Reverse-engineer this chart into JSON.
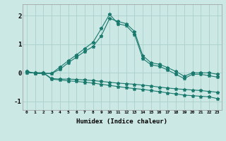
{
  "xlabel": "Humidex (Indice chaleur)",
  "x": [
    0,
    1,
    2,
    3,
    4,
    5,
    6,
    7,
    8,
    9,
    10,
    11,
    12,
    13,
    14,
    15,
    16,
    17,
    18,
    19,
    20,
    21,
    22,
    23
  ],
  "line1": [
    0.05,
    -0.02,
    -0.02,
    -0.02,
    0.12,
    0.35,
    0.55,
    0.75,
    0.92,
    1.3,
    1.9,
    1.8,
    1.72,
    1.45,
    0.6,
    0.35,
    0.3,
    0.18,
    0.05,
    -0.12,
    0.0,
    0.0,
    0.0,
    -0.05
  ],
  "line2": [
    0.05,
    -0.02,
    -0.02,
    -0.02,
    0.2,
    0.42,
    0.63,
    0.85,
    1.07,
    1.55,
    2.05,
    1.72,
    1.65,
    1.35,
    0.5,
    0.28,
    0.23,
    0.1,
    -0.05,
    -0.2,
    -0.05,
    -0.05,
    -0.1,
    -0.15
  ],
  "line3": [
    0.0,
    0.0,
    0.0,
    -0.2,
    -0.22,
    -0.22,
    -0.23,
    -0.25,
    -0.27,
    -0.3,
    -0.33,
    -0.36,
    -0.38,
    -0.4,
    -0.43,
    -0.46,
    -0.5,
    -0.53,
    -0.56,
    -0.58,
    -0.6,
    -0.62,
    -0.65,
    -0.68
  ],
  "line4": [
    0.0,
    0.0,
    0.0,
    -0.22,
    -0.25,
    -0.28,
    -0.3,
    -0.33,
    -0.36,
    -0.4,
    -0.44,
    -0.48,
    -0.52,
    -0.55,
    -0.58,
    -0.62,
    -0.66,
    -0.7,
    -0.74,
    -0.78,
    -0.8,
    -0.82,
    -0.84,
    -0.9
  ],
  "line_color": "#1a7a6e",
  "bg_color": "#cce8e4",
  "grid_color": "#aacfcc",
  "ylim": [
    -1.3,
    2.4
  ],
  "yticks": [
    -1,
    0,
    1,
    2
  ],
  "figsize": [
    3.2,
    2.0
  ],
  "dpi": 100
}
